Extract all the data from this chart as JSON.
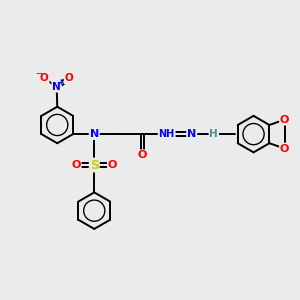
{
  "background_color": "#ebebeb",
  "atom_colors": {
    "C": "#000000",
    "N": "#0000ff",
    "O": "#ff0000",
    "S": "#cccc00",
    "H": "#4a8f8f"
  },
  "bond_color": "#000000",
  "bond_lw": 1.4,
  "dbl_off": 0.055,
  "ring_r": 0.62,
  "font_size_atom": 7.5,
  "font_size_small": 6.5
}
